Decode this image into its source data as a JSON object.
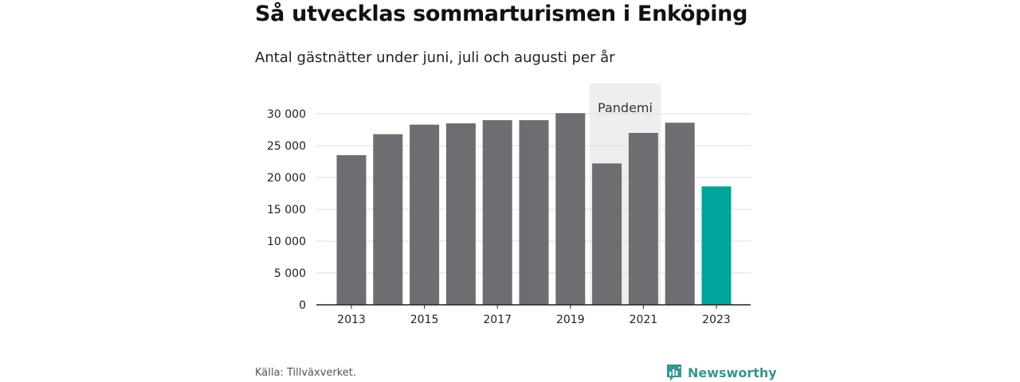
{
  "chart_data": {
    "type": "bar",
    "title": "Så utvecklas sommarturismen i Enköping",
    "subtitle": "Antal gästnätter under juni, juli och augusti per år",
    "categories": [
      "2013",
      "2014",
      "2015",
      "2016",
      "2017",
      "2018",
      "2019",
      "2020",
      "2021",
      "2022",
      "2023"
    ],
    "x_tick_labels": [
      "2013",
      "2015",
      "2017",
      "2019",
      "2021",
      "2023"
    ],
    "values": [
      23500,
      26800,
      28300,
      28500,
      29000,
      29000,
      30100,
      22200,
      27000,
      28600,
      18600
    ],
    "highlight_category": "2023",
    "ylim": [
      0,
      30000
    ],
    "y_ticks": [
      0,
      5000,
      10000,
      15000,
      20000,
      25000,
      30000
    ],
    "y_tick_labels": [
      "0",
      "5 000",
      "10 000",
      "15 000",
      "20 000",
      "25 000",
      "30 000"
    ],
    "grid": true,
    "annotation": {
      "label": "Pandemi",
      "categories": [
        "2020",
        "2021"
      ]
    },
    "colors": {
      "bar": "#6e6d72",
      "highlight": "#00a49a",
      "annotation_band": "#eeeeee",
      "grid": "#dddddd",
      "axis": "#222222"
    }
  },
  "footer": {
    "source": "Källa: Tillväxverket.",
    "brand": "Newsworthy",
    "brand_icon": "newsworthy-logo-icon",
    "brand_color": "#3a9490"
  }
}
